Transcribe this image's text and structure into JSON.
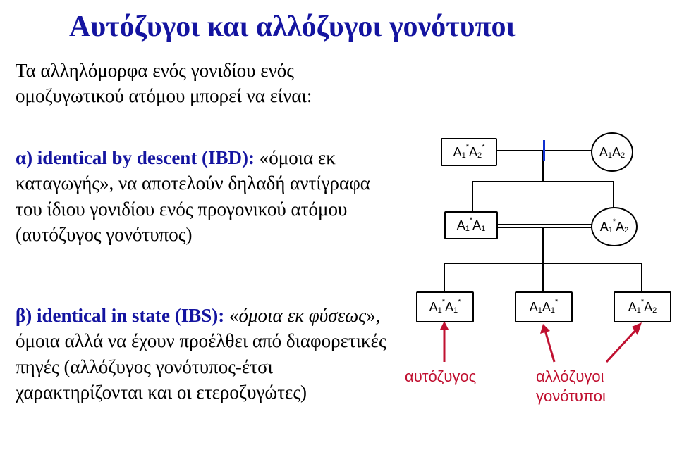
{
  "title": "Αυτόζυγοι και αλλόζυγοι γονότυποι",
  "intro": "Τα αλληλόμορφα ενός γονιδίου ενός ομοζυγωτικού ατόμου μπορεί να είναι:",
  "alpha": {
    "lead": "α) identical by descent (IBD):",
    "body": "«όμοια εκ καταγωγής», να αποτελούν δηλαδή αντίγραφα του ίδιου γονιδίου ενός προγονικού ατόμου (αυτόζυγος γονότυπος)"
  },
  "beta": {
    "lead": "β) identical in state (IBS):",
    "body_pre": "«",
    "body_ital": "όμοια εκ φύσεως",
    "body_post": "»,  όμοια αλλά να έχουν προέλθει από διαφορετικές πηγές (αλλόζυγος γονότυπος-έτσι χαρακτηρίζονται και οι ετεροζυγώτες)"
  },
  "captions": {
    "auto": "αυτόζυγος",
    "allo_line1": "αλλόζυγοι",
    "allo_line2": "γονότυποι"
  },
  "nodes": {
    "p1": {
      "html": "A<span class='sub'>1</span><span class='sup'>*</span>A<span class='sub'>2</span><span class='sup'>*</span>"
    },
    "p2": {
      "html": "A<span class='sub'>1</span>A<span class='sub'>2</span>"
    },
    "m1": {
      "html": "A<span class='sub'>1</span><span class='sup'>*</span>A<span class='sub'>1</span>"
    },
    "m2": {
      "html": "A<span class='sub'>1</span><span class='sup'>*</span>A<span class='sub'>2</span>"
    },
    "c1": {
      "html": "A<span class='sub'>1</span><span class='sup'>*</span>A<span class='sub'>1</span><span class='sup'>*</span>"
    },
    "c2": {
      "html": "A<span class='sub'>1</span>A<span class='sub'>1</span><span class='sup'>*</span>"
    },
    "c3": {
      "html": "A<span class='sub'>1</span><span class='sup'>*</span>A<span class='sub'>2</span>"
    }
  },
  "style": {
    "title_color": "#1414a0",
    "caption_color": "#c01030",
    "line_color": "#000000"
  }
}
